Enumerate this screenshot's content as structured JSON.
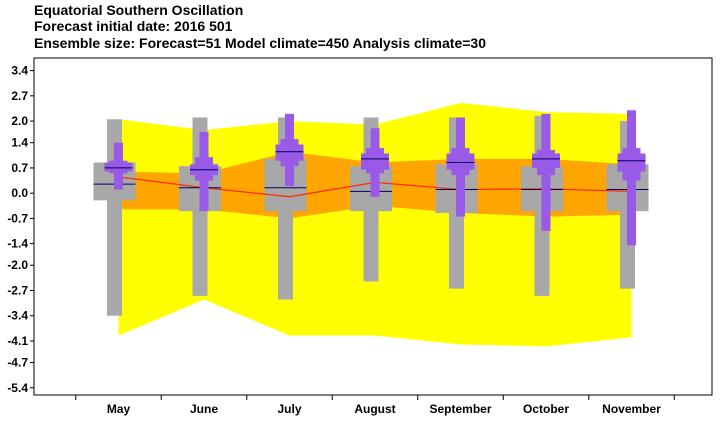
{
  "chart_data": {
    "type": "box",
    "title_lines": [
      "Equatorial Southern Oscillation",
      " Forecast initial date: 2016 501",
      "Ensemble size: Forecast=51 Model climate=450 Analysis climate=30"
    ],
    "categories": [
      "May",
      "June",
      "July",
      "August",
      "September",
      "October",
      "November"
    ],
    "yticks": [
      "3.4",
      "2.7",
      "2.0",
      "1.4",
      "0.7",
      "0.0",
      "-0.7",
      "-1.4",
      "-2.0",
      "-2.7",
      "-3.4",
      "-4.1",
      "-4.7",
      "-5.4"
    ],
    "ylim": [
      -5.6,
      3.75
    ],
    "grid": false,
    "colors": {
      "outer_band": "#ffff00",
      "inner_band": "#ffa500",
      "climate_box": "#a8a8a8",
      "forecast_box": "#9a5ae8",
      "analysis_line": "#ff2a00",
      "median": "#000066"
    },
    "outer_band": {
      "upper": [
        2.05,
        1.75,
        2.0,
        1.9,
        2.5,
        2.25,
        2.2
      ],
      "lower": [
        -3.95,
        -2.95,
        -3.95,
        -3.95,
        -4.2,
        -4.25,
        -4.0
      ]
    },
    "inner_band": {
      "upper": [
        0.6,
        0.55,
        1.15,
        0.85,
        0.95,
        0.95,
        0.8
      ],
      "lower": [
        -0.45,
        -0.45,
        -0.7,
        -0.35,
        -0.55,
        -0.65,
        -0.6
      ]
    },
    "analysis_mean": [
      0.45,
      0.15,
      -0.1,
      0.3,
      0.1,
      0.12,
      0.05
    ],
    "model_climate": [
      {
        "min": -3.4,
        "p10": -0.2,
        "p25": 0.0,
        "median": 0.25,
        "p75": 0.6,
        "p90": 0.85,
        "max": 2.05
      },
      {
        "min": -2.85,
        "p10": -0.5,
        "p25": -0.2,
        "median": 0.15,
        "p75": 0.45,
        "p90": 0.75,
        "max": 2.1
      },
      {
        "min": -2.95,
        "p10": -0.5,
        "p25": -0.4,
        "median": 0.15,
        "p75": 0.75,
        "p90": 0.95,
        "max": 2.1
      },
      {
        "min": -2.45,
        "p10": -0.5,
        "p25": -0.4,
        "median": 0.05,
        "p75": 0.55,
        "p90": 0.75,
        "max": 2.1
      },
      {
        "min": -2.65,
        "p10": -0.55,
        "p25": -0.4,
        "median": 0.1,
        "p75": 0.6,
        "p90": 0.8,
        "max": 2.1
      },
      {
        "min": -2.85,
        "p10": -0.5,
        "p25": -0.35,
        "median": 0.1,
        "p75": 0.55,
        "p90": 0.75,
        "max": 2.15
      },
      {
        "min": -2.65,
        "p10": -0.5,
        "p25": -0.35,
        "median": 0.1,
        "p75": 0.55,
        "p90": 0.8,
        "max": 2.0
      }
    ],
    "forecast": [
      {
        "min": 0.1,
        "p10": 0.55,
        "p25": 0.6,
        "median": 0.7,
        "p75": 0.85,
        "p90": 0.9,
        "max": 1.4
      },
      {
        "min": -0.5,
        "p10": 0.35,
        "p25": 0.5,
        "median": 0.65,
        "p75": 0.8,
        "p90": 1.0,
        "max": 1.7
      },
      {
        "min": 0.2,
        "p10": 0.75,
        "p25": 0.9,
        "median": 1.15,
        "p75": 1.35,
        "p90": 1.5,
        "max": 2.2
      },
      {
        "min": -0.1,
        "p10": 0.55,
        "p25": 0.65,
        "median": 0.95,
        "p75": 1.1,
        "p90": 1.25,
        "max": 1.8
      },
      {
        "min": -0.65,
        "p10": 0.5,
        "p25": 0.65,
        "median": 0.85,
        "p75": 1.1,
        "p90": 1.25,
        "max": 2.1
      },
      {
        "min": -1.05,
        "p10": 0.5,
        "p25": 0.7,
        "median": 0.95,
        "p75": 1.1,
        "p90": 1.2,
        "max": 2.2
      },
      {
        "min": -1.45,
        "p10": 0.35,
        "p25": 0.6,
        "median": 0.9,
        "p75": 1.1,
        "p90": 1.25,
        "max": 2.3
      }
    ]
  }
}
